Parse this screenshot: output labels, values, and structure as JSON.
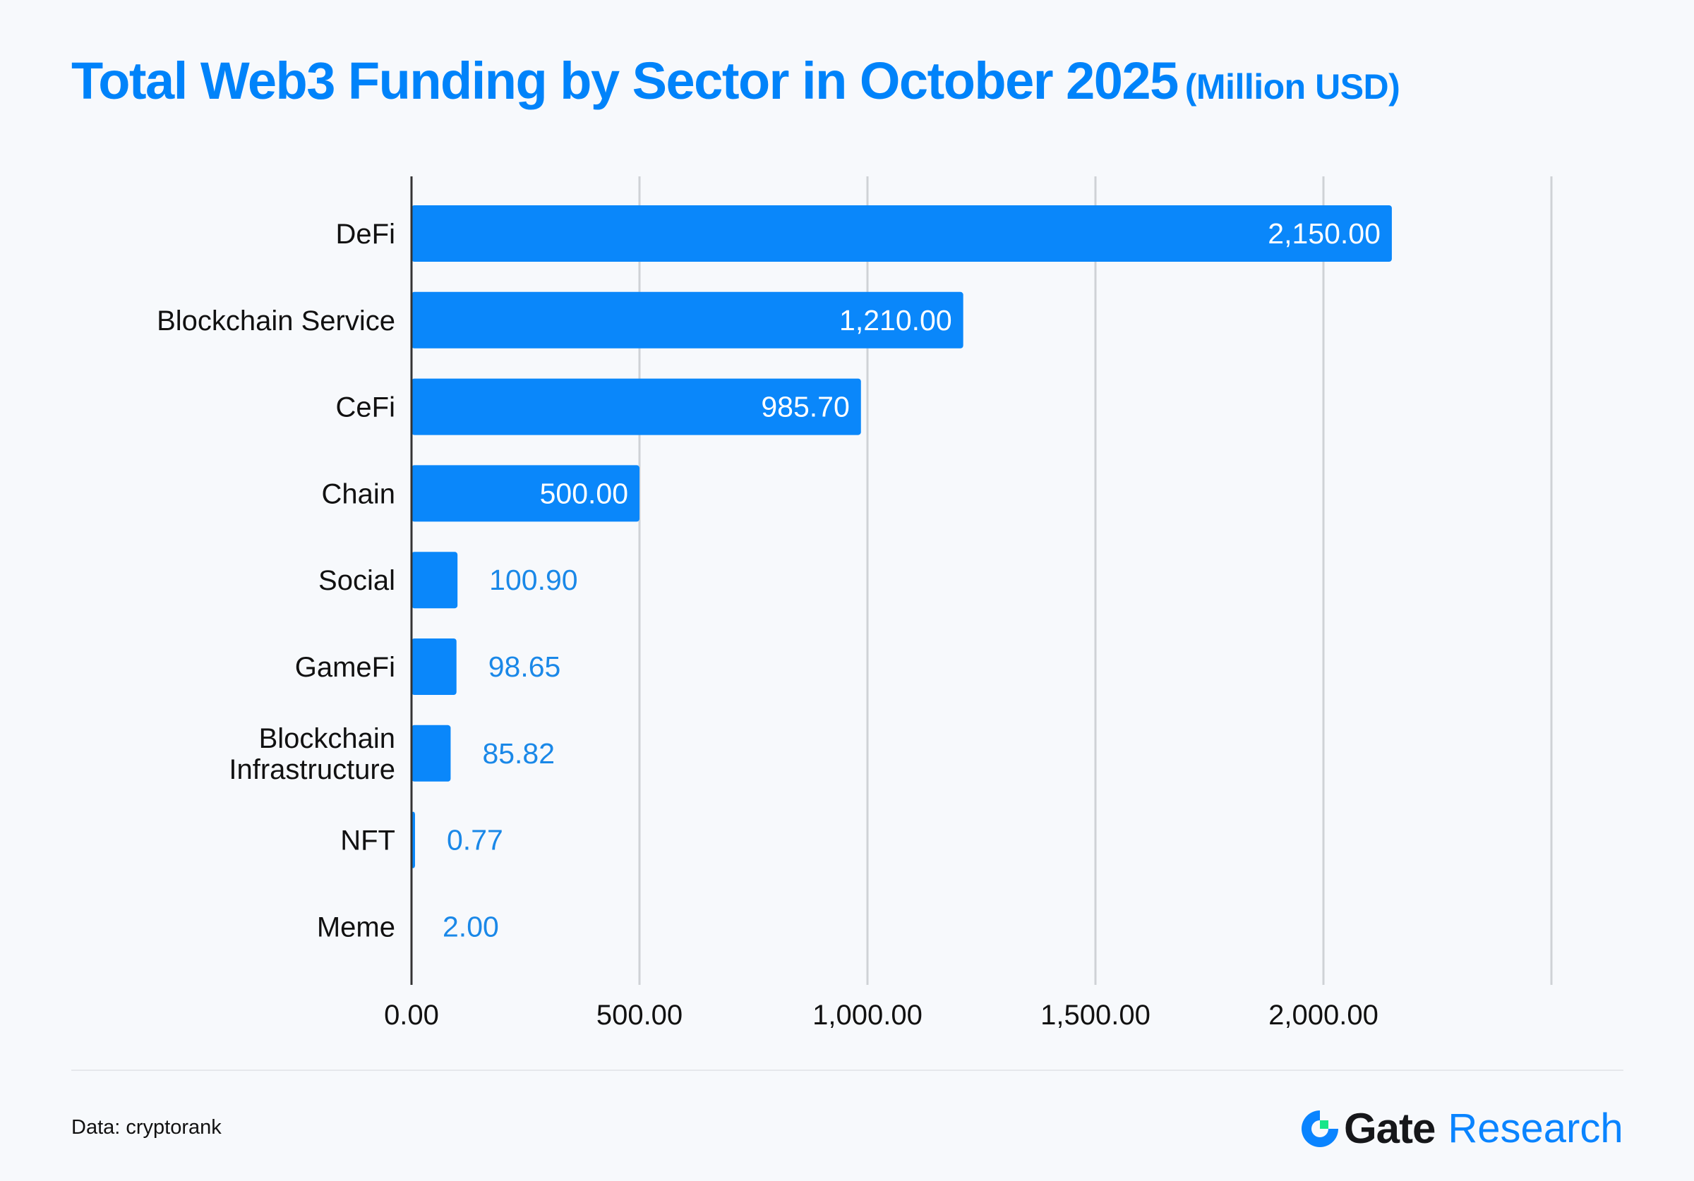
{
  "title": {
    "main": "Total Web3 Funding by Sector in October 2025",
    "unit": "(Million USD)"
  },
  "footer": {
    "source": "Data: cryptorank",
    "brand": "Gate",
    "brand_suffix": "Research"
  },
  "colors": {
    "bar": "#0a87fa",
    "title": "#0083fa",
    "label_outside": "#1a88e8",
    "grid": "#cfd2d6"
  },
  "chart_data": {
    "type": "bar",
    "orientation": "horizontal",
    "title": "Total Web3 Funding by Sector in October 2025 (Million USD)",
    "categories": [
      "DeFi",
      "Blockchain Service",
      "CeFi",
      "Chain",
      "Social",
      "GameFi",
      "Blockchain\nInfrastructure",
      "NFT",
      "Meme"
    ],
    "values": [
      2150.0,
      1210.0,
      985.7,
      500.0,
      100.9,
      98.65,
      85.82,
      0.77,
      2.0
    ],
    "value_labels": [
      "2,150.00",
      "1,210.00",
      "985.70",
      "500.00",
      "100.90",
      "98.65",
      "85.82",
      "0.77",
      "2.00"
    ],
    "xlim": [
      0,
      2500
    ],
    "xticks": [
      0,
      500,
      1000,
      1500,
      2000,
      2500
    ],
    "xtick_labels": [
      "0.00",
      "500.00",
      "1,000.00",
      "1,500.00",
      "2,000.00",
      ""
    ],
    "grid": true,
    "xlabel": "",
    "ylabel": ""
  }
}
